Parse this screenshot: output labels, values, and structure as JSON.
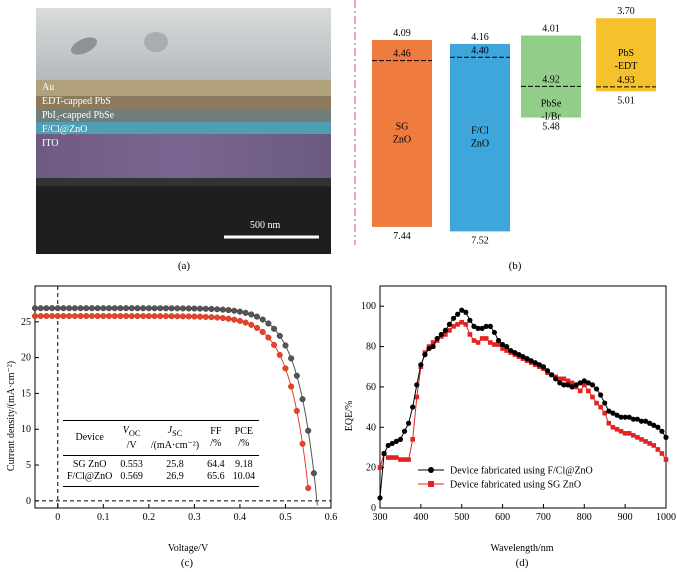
{
  "panels": {
    "a": "(a)",
    "b": "(b)",
    "c": "(c)",
    "d": "(d)"
  },
  "sem": {
    "layers": [
      "Au",
      "EDT-capped PbS",
      "PbI₂-capped PbSe",
      "F/Cl@ZnO",
      "ITO"
    ],
    "scale_bar": "500 nm"
  },
  "chart_data": [
    {
      "type": "bar",
      "title": "",
      "note": "Energy level diagram",
      "bars": [
        {
          "label": "SG\nZnO",
          "top": "4.09",
          "mid": "4.46",
          "bottom": "7.44",
          "color": "#f07b3f"
        },
        {
          "label": "F/Cl\nZnO",
          "top": "4.16",
          "mid": "4.40",
          "bottom": "7.52",
          "color": "#3ea6db"
        },
        {
          "label": "PbSe\n-I/Br",
          "top": "4.01",
          "mid": "4.92",
          "bottom": "5.48",
          "color": "#93cd8a"
        },
        {
          "label": "PbS\n-EDT",
          "top": "3.70",
          "mid": "4.93",
          "bottom": "5.01",
          "color": "#f5c22d"
        }
      ]
    },
    {
      "type": "scatter",
      "xlabel": "Voltage/V",
      "ylabel": "Current density/(mA·cm⁻²)",
      "xlim": [
        -0.05,
        0.6
      ],
      "ylim": [
        -1,
        30
      ],
      "xticks": [
        "0",
        "0.1",
        "0.2",
        "0.3",
        "0.4",
        "0.5",
        "0.6"
      ],
      "yticks": [
        "0",
        "5",
        "10",
        "15",
        "20",
        "25"
      ],
      "series": [
        {
          "color": "#555555",
          "jsc": 26.9,
          "voc": 0.569
        },
        {
          "color": "#e5432a",
          "jsc": 25.8,
          "voc": 0.553
        }
      ],
      "table": {
        "headers": [
          "Device",
          "V_OC /V",
          "J_SC /(mA·cm⁻²)",
          "FF /%",
          "PCE /%"
        ],
        "header_lines": [
          [
            "Device"
          ],
          [
            "V",
            "OC",
            "/V"
          ],
          [
            "J",
            "SC",
            "/(mA·cm⁻²)"
          ],
          [
            "FF",
            "/%"
          ],
          [
            "PCE",
            "/%"
          ]
        ],
        "rows": [
          [
            "SG ZnO",
            "0.553",
            "25.8",
            "64.4",
            "9.18"
          ],
          [
            "F/Cl@ZnO",
            "0.569",
            "26.9",
            "65.6",
            "10.04"
          ]
        ]
      }
    },
    {
      "type": "line",
      "xlabel": "Wavelength/nm",
      "ylabel": "EQE/%",
      "xlim": [
        300,
        1000
      ],
      "ylim": [
        0,
        110
      ],
      "xticks": [
        "300",
        "400",
        "500",
        "600",
        "700",
        "800",
        "900",
        "1000"
      ],
      "yticks": [
        "0",
        "20",
        "40",
        "60",
        "80",
        "100"
      ],
      "series": [
        {
          "name": "Device fabricated using F/Cl@ZnO",
          "color": "#000000",
          "marker": "circle",
          "points": [
            [
              300,
              5
            ],
            [
              310,
              27
            ],
            [
              320,
              31
            ],
            [
              330,
              32
            ],
            [
              340,
              33
            ],
            [
              350,
              34
            ],
            [
              360,
              38
            ],
            [
              370,
              42
            ],
            [
              380,
              50
            ],
            [
              390,
              61
            ],
            [
              400,
              71
            ],
            [
              410,
              76
            ],
            [
              420,
              79
            ],
            [
              430,
              80
            ],
            [
              440,
              84
            ],
            [
              450,
              86
            ],
            [
              460,
              88
            ],
            [
              470,
              91
            ],
            [
              480,
              94
            ],
            [
              490,
              96
            ],
            [
              500,
              98
            ],
            [
              510,
              97
            ],
            [
              520,
              93
            ],
            [
              530,
              90
            ],
            [
              540,
              89
            ],
            [
              550,
              89
            ],
            [
              560,
              90
            ],
            [
              570,
              90
            ],
            [
              580,
              87
            ],
            [
              590,
              83
            ],
            [
              600,
              81
            ],
            [
              610,
              80
            ],
            [
              620,
              78
            ],
            [
              630,
              77
            ],
            [
              640,
              76
            ],
            [
              650,
              75
            ],
            [
              660,
              74
            ],
            [
              670,
              73
            ],
            [
              680,
              72
            ],
            [
              690,
              71
            ],
            [
              700,
              70
            ],
            [
              710,
              68
            ],
            [
              720,
              66
            ],
            [
              730,
              64
            ],
            [
              740,
              62
            ],
            [
              750,
              61
            ],
            [
              760,
              61
            ],
            [
              770,
              60
            ],
            [
              780,
              61
            ],
            [
              790,
              62
            ],
            [
              800,
              63
            ],
            [
              810,
              62
            ],
            [
              820,
              61
            ],
            [
              830,
              59
            ],
            [
              840,
              56
            ],
            [
              850,
              52
            ],
            [
              860,
              48
            ],
            [
              870,
              47
            ],
            [
              880,
              46
            ],
            [
              890,
              45
            ],
            [
              900,
              45
            ],
            [
              910,
              45
            ],
            [
              920,
              44
            ],
            [
              930,
              44
            ],
            [
              940,
              43
            ],
            [
              950,
              43
            ],
            [
              960,
              42
            ],
            [
              970,
              41
            ],
            [
              980,
              40
            ],
            [
              990,
              38
            ],
            [
              1000,
              35
            ]
          ]
        },
        {
          "name": "Device fabricated using SG ZnO",
          "color": "#e52222",
          "marker": "square",
          "points": [
            [
              300,
              20
            ],
            [
              310,
              27
            ],
            [
              320,
              25
            ],
            [
              330,
              25
            ],
            [
              340,
              25
            ],
            [
              350,
              24
            ],
            [
              360,
              24
            ],
            [
              370,
              24
            ],
            [
              380,
              34
            ],
            [
              390,
              55
            ],
            [
              400,
              70
            ],
            [
              410,
              77
            ],
            [
              420,
              80
            ],
            [
              430,
              82
            ],
            [
              440,
              83
            ],
            [
              450,
              85
            ],
            [
              460,
              86
            ],
            [
              470,
              88
            ],
            [
              480,
              90
            ],
            [
              490,
              91
            ],
            [
              500,
              92
            ],
            [
              510,
              91
            ],
            [
              520,
              86
            ],
            [
              530,
              83
            ],
            [
              540,
              82
            ],
            [
              550,
              84
            ],
            [
              560,
              84
            ],
            [
              570,
              82
            ],
            [
              580,
              81
            ],
            [
              590,
              81
            ],
            [
              600,
              79
            ],
            [
              610,
              78
            ],
            [
              620,
              77
            ],
            [
              630,
              76
            ],
            [
              640,
              75
            ],
            [
              650,
              74
            ],
            [
              660,
              73
            ],
            [
              670,
              72
            ],
            [
              680,
              71
            ],
            [
              690,
              70
            ],
            [
              700,
              69
            ],
            [
              710,
              67
            ],
            [
              720,
              66
            ],
            [
              730,
              65
            ],
            [
              740,
              64
            ],
            [
              750,
              64
            ],
            [
              760,
              63
            ],
            [
              770,
              62
            ],
            [
              780,
              60
            ],
            [
              790,
              58
            ],
            [
              800,
              61
            ],
            [
              810,
              58
            ],
            [
              820,
              55
            ],
            [
              830,
              52
            ],
            [
              840,
              50
            ],
            [
              850,
              47
            ],
            [
              860,
              42
            ],
            [
              870,
              40
            ],
            [
              880,
              39
            ],
            [
              890,
              38
            ],
            [
              900,
              37
            ],
            [
              910,
              37
            ],
            [
              920,
              36
            ],
            [
              930,
              35
            ],
            [
              940,
              34
            ],
            [
              950,
              33
            ],
            [
              960,
              32
            ],
            [
              970,
              31
            ],
            [
              980,
              29
            ],
            [
              990,
              27
            ],
            [
              1000,
              24
            ]
          ]
        }
      ]
    }
  ]
}
